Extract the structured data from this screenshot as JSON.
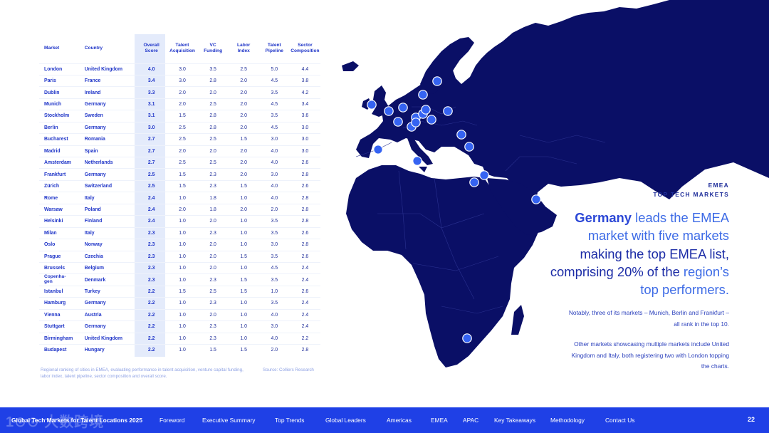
{
  "table": {
    "headers": [
      "Market",
      "Country",
      "Overall\nScore",
      "Talent\nAcquisition",
      "VC\nFunding",
      "Labor\nIndex",
      "Talent\nPipeline",
      "Sector\nComposition"
    ],
    "rows": [
      [
        "London",
        "United Kingdom",
        "4.0",
        "3.0",
        "3.5",
        "2.5",
        "5.0",
        "4.4"
      ],
      [
        "Paris",
        "France",
        "3.4",
        "3.0",
        "2.8",
        "2.0",
        "4.5",
        "3.8"
      ],
      [
        "Dublin",
        "Ireland",
        "3.3",
        "2.0",
        "2.0",
        "2.0",
        "3.5",
        "4.2"
      ],
      [
        "Munich",
        "Germany",
        "3.1",
        "2.0",
        "2.5",
        "2.0",
        "4.5",
        "3.4"
      ],
      [
        "Stockholm",
        "Sweden",
        "3.1",
        "1.5",
        "2.8",
        "2.0",
        "3.5",
        "3.6"
      ],
      [
        "Berlin",
        "Germany",
        "3.0",
        "2.5",
        "2.8",
        "2.0",
        "4.5",
        "3.0"
      ],
      [
        "Bucharest",
        "Romania",
        "2.7",
        "2.5",
        "2.5",
        "1.5",
        "3.0",
        "3.0"
      ],
      [
        "Madrid",
        "Spain",
        "2.7",
        "2.0",
        "2.0",
        "2.0",
        "4.0",
        "3.0"
      ],
      [
        "Amsterdam",
        "Netherlands",
        "2.7",
        "2.5",
        "2.5",
        "2.0",
        "4.0",
        "2.6"
      ],
      [
        "Frankfurt",
        "Germany",
        "2.5",
        "1.5",
        "2.3",
        "2.0",
        "3.0",
        "2.8"
      ],
      [
        "Zürich",
        "Switzerland",
        "2.5",
        "1.5",
        "2.3",
        "1.5",
        "4.0",
        "2.6"
      ],
      [
        "Rome",
        "Italy",
        "2.4",
        "1.0",
        "1.8",
        "1.0",
        "4.0",
        "2.8"
      ],
      [
        "Warsaw",
        "Poland",
        "2.4",
        "2.0",
        "1.8",
        "2.0",
        "2.0",
        "2.8"
      ],
      [
        "Helsinki",
        "Finland",
        "2.4",
        "1.0",
        "2.0",
        "1.0",
        "3.5",
        "2.8"
      ],
      [
        "Milan",
        "Italy",
        "2.3",
        "1.0",
        "2.3",
        "1.0",
        "3.5",
        "2.6"
      ],
      [
        "Oslo",
        "Norway",
        "2.3",
        "1.0",
        "2.0",
        "1.0",
        "3.0",
        "2.8"
      ],
      [
        "Prague",
        "Czechia",
        "2.3",
        "1.0",
        "2.0",
        "1.5",
        "3.5",
        "2.6"
      ],
      [
        "Brussels",
        "Belgium",
        "2.3",
        "1.0",
        "2.0",
        "1.0",
        "4.5",
        "2.4"
      ],
      [
        "Copenha-\ngen",
        "Denmark",
        "2.3",
        "1.0",
        "2.3",
        "1.5",
        "3.5",
        "2.4"
      ],
      [
        "Istanbul",
        "Turkey",
        "2.2",
        "1.5",
        "2.5",
        "1.5",
        "1.0",
        "2.6"
      ],
      [
        "Hamburg",
        "Germany",
        "2.2",
        "1.0",
        "2.3",
        "1.0",
        "3.5",
        "2.4"
      ],
      [
        "Vienna",
        "Austria",
        "2.2",
        "1.0",
        "2.0",
        "1.0",
        "4.0",
        "2.4"
      ],
      [
        "Stuttgart",
        "Germany",
        "2.2",
        "1.0",
        "2.3",
        "1.0",
        "3.0",
        "2.4"
      ],
      [
        "Birmingham",
        "United Kingdom",
        "2.2",
        "1.0",
        "2.3",
        "1.0",
        "4.0",
        "2.2"
      ],
      [
        "Budapest",
        "Hungary",
        "2.2",
        "1.0",
        "1.5",
        "1.5",
        "2.0",
        "2.8"
      ]
    ],
    "caption": "Regional ranking of cities in EMEA, evaluating performance in talent acquisition, venture capital funding, labor index, talent pipeline, sector composition and overall score.",
    "source": "Source: Colliers Research"
  },
  "map": {
    "land_color": "#0a0f66",
    "marker_color": "#3563f2"
  },
  "right_panel": {
    "region": "EMEA",
    "subtitle": "TOP TECH MARKETS",
    "headline_bold": "Germany",
    "headline_rest": " leads the EMEA market with five markets ",
    "headline_dark": "making the top EMEA list, comprising 20% of the",
    "headline_end": " region’s top performers.",
    "body1": "Notably, three of its markets – Munich, Berlin and Frankfurt – all rank in the top 10.",
    "body2": "Other markets showcasing multiple markets include United Kingdom and Italy, both registering two with London topping the charts."
  },
  "footer": {
    "watermark": "1⊙⊙ 大数跨境",
    "title": "Global Tech Markets for Talent Locations 2025",
    "nav": [
      "Foreword",
      "Executive Summary",
      "Top Trends",
      "Global Leaders",
      "Americas",
      "EMEA",
      "APAC",
      "Key Takeaways",
      "Methodology",
      "Contact Us"
    ],
    "page_number": "22"
  }
}
